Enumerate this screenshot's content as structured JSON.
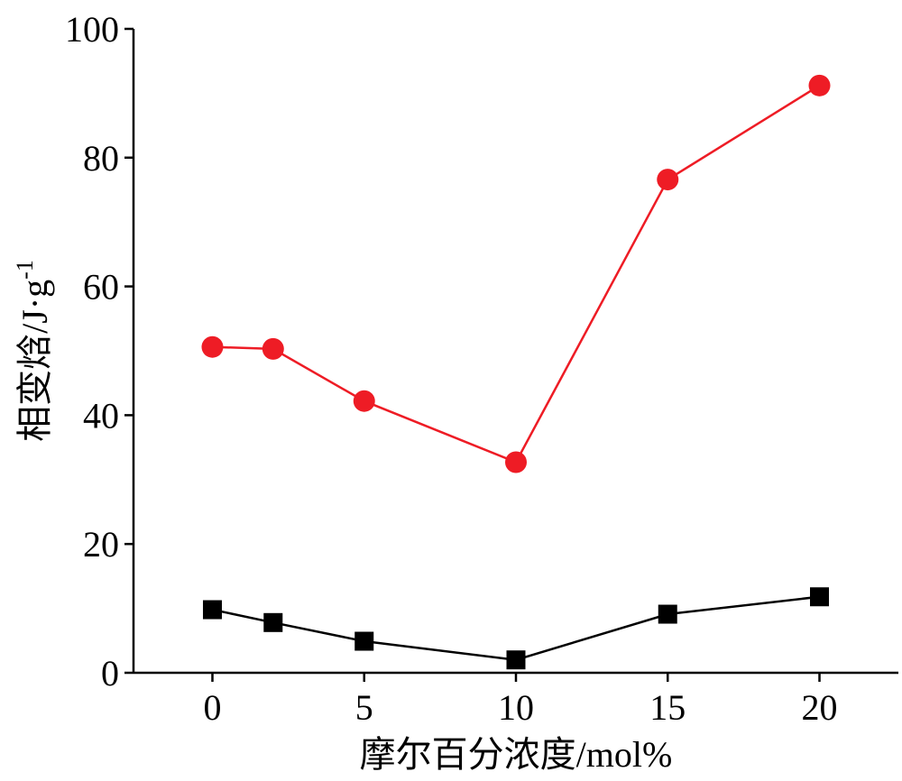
{
  "chart_data": {
    "type": "line",
    "xlabel": "摩尔百分浓度/mol%",
    "ylabel_main": "相变焓/J·g",
    "ylabel_sup": "-1",
    "xlim": [
      -2.6,
      22.6
    ],
    "ylim": [
      0,
      100
    ],
    "xticks": [
      0,
      5,
      10,
      15,
      20
    ],
    "yticks": [
      0,
      20,
      40,
      60,
      80,
      100
    ],
    "grid": false,
    "series": [
      {
        "color": "#ee1c25",
        "marker": "circle",
        "x": [
          0,
          2,
          5,
          10,
          15,
          20
        ],
        "y": [
          50.6,
          50.3,
          42.2,
          32.7,
          76.6,
          91.2
        ]
      },
      {
        "color": "#000000",
        "marker": "square",
        "x": [
          0,
          2,
          5,
          10,
          15,
          20
        ],
        "y": [
          9.8,
          7.8,
          4.9,
          2.0,
          9.1,
          11.8
        ]
      }
    ]
  }
}
